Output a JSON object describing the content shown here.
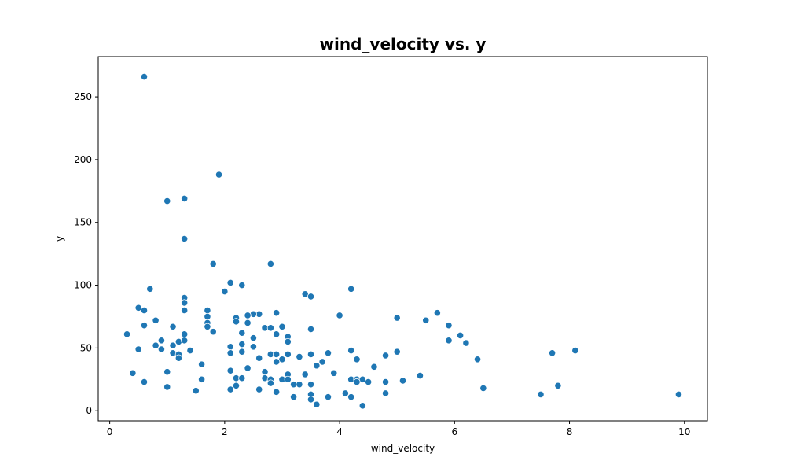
{
  "chart_data": {
    "type": "scatter",
    "title": "wind_velocity vs. y",
    "xlabel": "wind_velocity",
    "ylabel": "y",
    "xlim": [
      -0.2,
      10.4
    ],
    "ylim": [
      -8,
      282
    ],
    "xticks": [
      0,
      2,
      4,
      6,
      8,
      10
    ],
    "yticks": [
      0,
      50,
      100,
      150,
      200,
      250
    ],
    "grid": false,
    "marker_color": "#1f77b4",
    "series": [
      {
        "points": [
          [
            0.6,
            266
          ],
          [
            1.9,
            188
          ],
          [
            1.3,
            169
          ],
          [
            1.0,
            167
          ],
          [
            1.3,
            137
          ],
          [
            1.8,
            117
          ],
          [
            2.8,
            117
          ],
          [
            2.1,
            102
          ],
          [
            2.3,
            100
          ],
          [
            0.7,
            97
          ],
          [
            4.2,
            97
          ],
          [
            2.0,
            95
          ],
          [
            3.4,
            93
          ],
          [
            3.5,
            91
          ],
          [
            1.3,
            90
          ],
          [
            1.3,
            86
          ],
          [
            0.5,
            82
          ],
          [
            0.6,
            80
          ],
          [
            1.3,
            80
          ],
          [
            1.7,
            80
          ],
          [
            2.9,
            78
          ],
          [
            5.7,
            78
          ],
          [
            2.6,
            77
          ],
          [
            2.5,
            77
          ],
          [
            2.4,
            76
          ],
          [
            4.0,
            76
          ],
          [
            1.7,
            75
          ],
          [
            5.0,
            74
          ],
          [
            2.2,
            74
          ],
          [
            0.8,
            72
          ],
          [
            2.2,
            71
          ],
          [
            2.4,
            70
          ],
          [
            5.5,
            72
          ],
          [
            1.7,
            70
          ],
          [
            5.9,
            68
          ],
          [
            0.6,
            68
          ],
          [
            1.1,
            67
          ],
          [
            1.7,
            67
          ],
          [
            2.7,
            66
          ],
          [
            2.8,
            66
          ],
          [
            3.0,
            67
          ],
          [
            3.5,
            65
          ],
          [
            1.8,
            63
          ],
          [
            2.3,
            62
          ],
          [
            0.3,
            61
          ],
          [
            1.3,
            61
          ],
          [
            2.9,
            61
          ],
          [
            6.1,
            60
          ],
          [
            2.5,
            58
          ],
          [
            3.1,
            59
          ],
          [
            0.9,
            56
          ],
          [
            1.2,
            55
          ],
          [
            1.3,
            56
          ],
          [
            3.1,
            55
          ],
          [
            5.9,
            56
          ],
          [
            6.2,
            54
          ],
          [
            0.8,
            52
          ],
          [
            1.1,
            52
          ],
          [
            2.3,
            53
          ],
          [
            2.1,
            51
          ],
          [
            2.5,
            51
          ],
          [
            0.5,
            49
          ],
          [
            0.9,
            49
          ],
          [
            1.4,
            48
          ],
          [
            4.2,
            48
          ],
          [
            5.0,
            47
          ],
          [
            8.1,
            48
          ],
          [
            2.1,
            46
          ],
          [
            2.3,
            47
          ],
          [
            3.8,
            46
          ],
          [
            7.7,
            46
          ],
          [
            1.1,
            46
          ],
          [
            1.2,
            45
          ],
          [
            2.8,
            45
          ],
          [
            2.9,
            45
          ],
          [
            3.1,
            45
          ],
          [
            3.5,
            45
          ],
          [
            4.8,
            44
          ],
          [
            1.2,
            42
          ],
          [
            2.6,
            42
          ],
          [
            3.0,
            41
          ],
          [
            3.3,
            43
          ],
          [
            4.3,
            41
          ],
          [
            6.4,
            41
          ],
          [
            2.9,
            39
          ],
          [
            3.7,
            39
          ],
          [
            1.6,
            37
          ],
          [
            3.6,
            36
          ],
          [
            4.6,
            35
          ],
          [
            2.4,
            34
          ],
          [
            2.1,
            32
          ],
          [
            2.7,
            31
          ],
          [
            1.0,
            31
          ],
          [
            0.4,
            30
          ],
          [
            3.1,
            29
          ],
          [
            3.4,
            29
          ],
          [
            3.9,
            30
          ],
          [
            5.4,
            28
          ],
          [
            2.2,
            26
          ],
          [
            2.3,
            26
          ],
          [
            2.7,
            26
          ],
          [
            1.6,
            25
          ],
          [
            2.8,
            25
          ],
          [
            3.0,
            25
          ],
          [
            3.1,
            25
          ],
          [
            4.2,
            25
          ],
          [
            4.3,
            25
          ],
          [
            4.4,
            25
          ],
          [
            4.5,
            23
          ],
          [
            4.3,
            23
          ],
          [
            4.8,
            23
          ],
          [
            5.1,
            24
          ],
          [
            0.6,
            23
          ],
          [
            2.8,
            22
          ],
          [
            3.2,
            21
          ],
          [
            3.3,
            21
          ],
          [
            3.5,
            21
          ],
          [
            2.2,
            20
          ],
          [
            7.8,
            20
          ],
          [
            1.0,
            19
          ],
          [
            6.5,
            18
          ],
          [
            2.1,
            17
          ],
          [
            1.5,
            16
          ],
          [
            2.6,
            17
          ],
          [
            2.9,
            15
          ],
          [
            3.5,
            13
          ],
          [
            4.1,
            14
          ],
          [
            4.8,
            14
          ],
          [
            7.5,
            13
          ],
          [
            9.9,
            13
          ],
          [
            3.2,
            11
          ],
          [
            3.8,
            11
          ],
          [
            4.2,
            11
          ],
          [
            3.5,
            9
          ],
          [
            3.6,
            5
          ],
          [
            4.4,
            4
          ]
        ]
      }
    ]
  }
}
